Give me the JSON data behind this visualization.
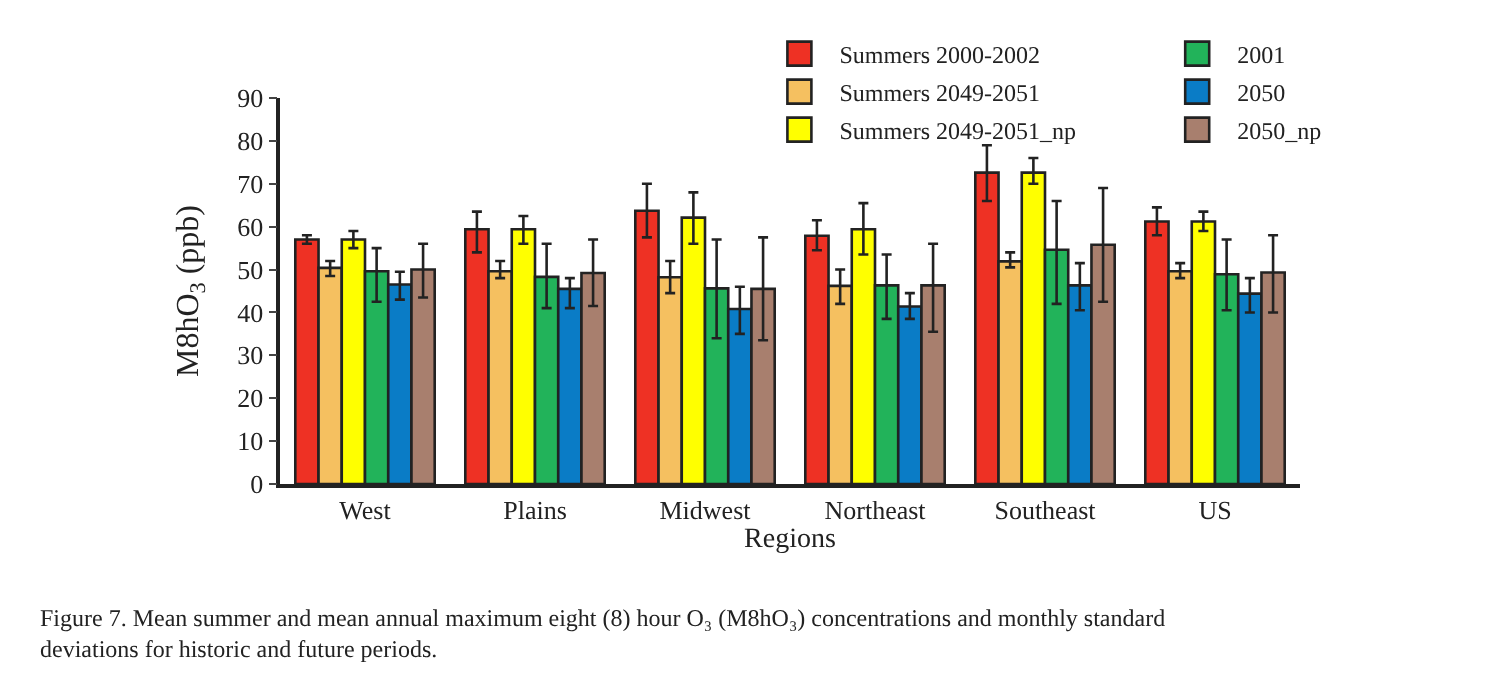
{
  "chart_data": {
    "type": "bar",
    "xlabel": "Regions",
    "ylabel": "M8hO$_{3}$ (ppb)",
    "categories": [
      "West",
      "Plains",
      "Midwest",
      "Northeast",
      "Southeast",
      "US"
    ],
    "series": [
      {
        "name": "Summers 2000-2002",
        "color": "#ee3124",
        "values": [
          57,
          59.4,
          63.7,
          57.9,
          72.6,
          61.2
        ],
        "errors": [
          [
            56,
            58
          ],
          [
            54,
            63.5
          ],
          [
            57.5,
            70
          ],
          [
            54.5,
            61.5
          ],
          [
            66,
            79
          ],
          [
            58,
            64.5
          ]
        ]
      },
      {
        "name": "Summers 2049-2051",
        "color": "#f5c060",
        "values": [
          50.4,
          49.6,
          48.2,
          46.2,
          51.9,
          49.6
        ],
        "errors": [
          [
            48.5,
            52
          ],
          [
            48,
            52
          ],
          [
            44.5,
            52
          ],
          [
            42,
            50
          ],
          [
            50.5,
            54
          ],
          [
            48,
            51.5
          ]
        ]
      },
      {
        "name": "Summers 2049-2051_np",
        "color": "#ffff00",
        "values": [
          57,
          59.4,
          62.1,
          59.4,
          72.6,
          61.2
        ],
        "errors": [
          [
            55,
            59
          ],
          [
            56,
            62.5
          ],
          [
            56,
            68
          ],
          [
            53.5,
            65.5
          ],
          [
            70,
            76
          ],
          [
            59,
            63.5
          ]
        ]
      },
      {
        "name": "2001",
        "color": "#22b35a",
        "values": [
          49.6,
          48.3,
          45.6,
          46.3,
          54.6,
          48.9
        ],
        "errors": [
          [
            42.5,
            55
          ],
          [
            41,
            56
          ],
          [
            34,
            57
          ],
          [
            38.5,
            53.5
          ],
          [
            42,
            66
          ],
          [
            40.5,
            57
          ]
        ]
      },
      {
        "name": "2050",
        "color": "#0a7cc6",
        "values": [
          46.5,
          45.5,
          40.8,
          41.4,
          46.3,
          44.4
        ],
        "errors": [
          [
            43,
            49.5
          ],
          [
            41,
            48
          ],
          [
            35,
            46
          ],
          [
            38.5,
            44.5
          ],
          [
            40.5,
            51.5
          ],
          [
            40,
            48
          ]
        ]
      },
      {
        "name": "2050_np",
        "color": "#a87f6e",
        "values": [
          50,
          49.2,
          45.5,
          46.3,
          55.8,
          49.3
        ],
        "errors": [
          [
            43.5,
            56
          ],
          [
            41.5,
            57
          ],
          [
            33.5,
            57.5
          ],
          [
            35.5,
            56
          ],
          [
            42.5,
            69
          ],
          [
            40,
            58
          ]
        ]
      }
    ],
    "ylim": [
      0,
      90
    ],
    "yticks": [
      0,
      10,
      20,
      30,
      40,
      50,
      60,
      70,
      80,
      90
    ],
    "legend": "top right",
    "annotations": [
      "Figure 7. Mean summer and mean annual maximum eight (8) hour O₃ (M8hO₃) concentrations and monthly standard deviations for historic and future periods."
    ]
  }
}
